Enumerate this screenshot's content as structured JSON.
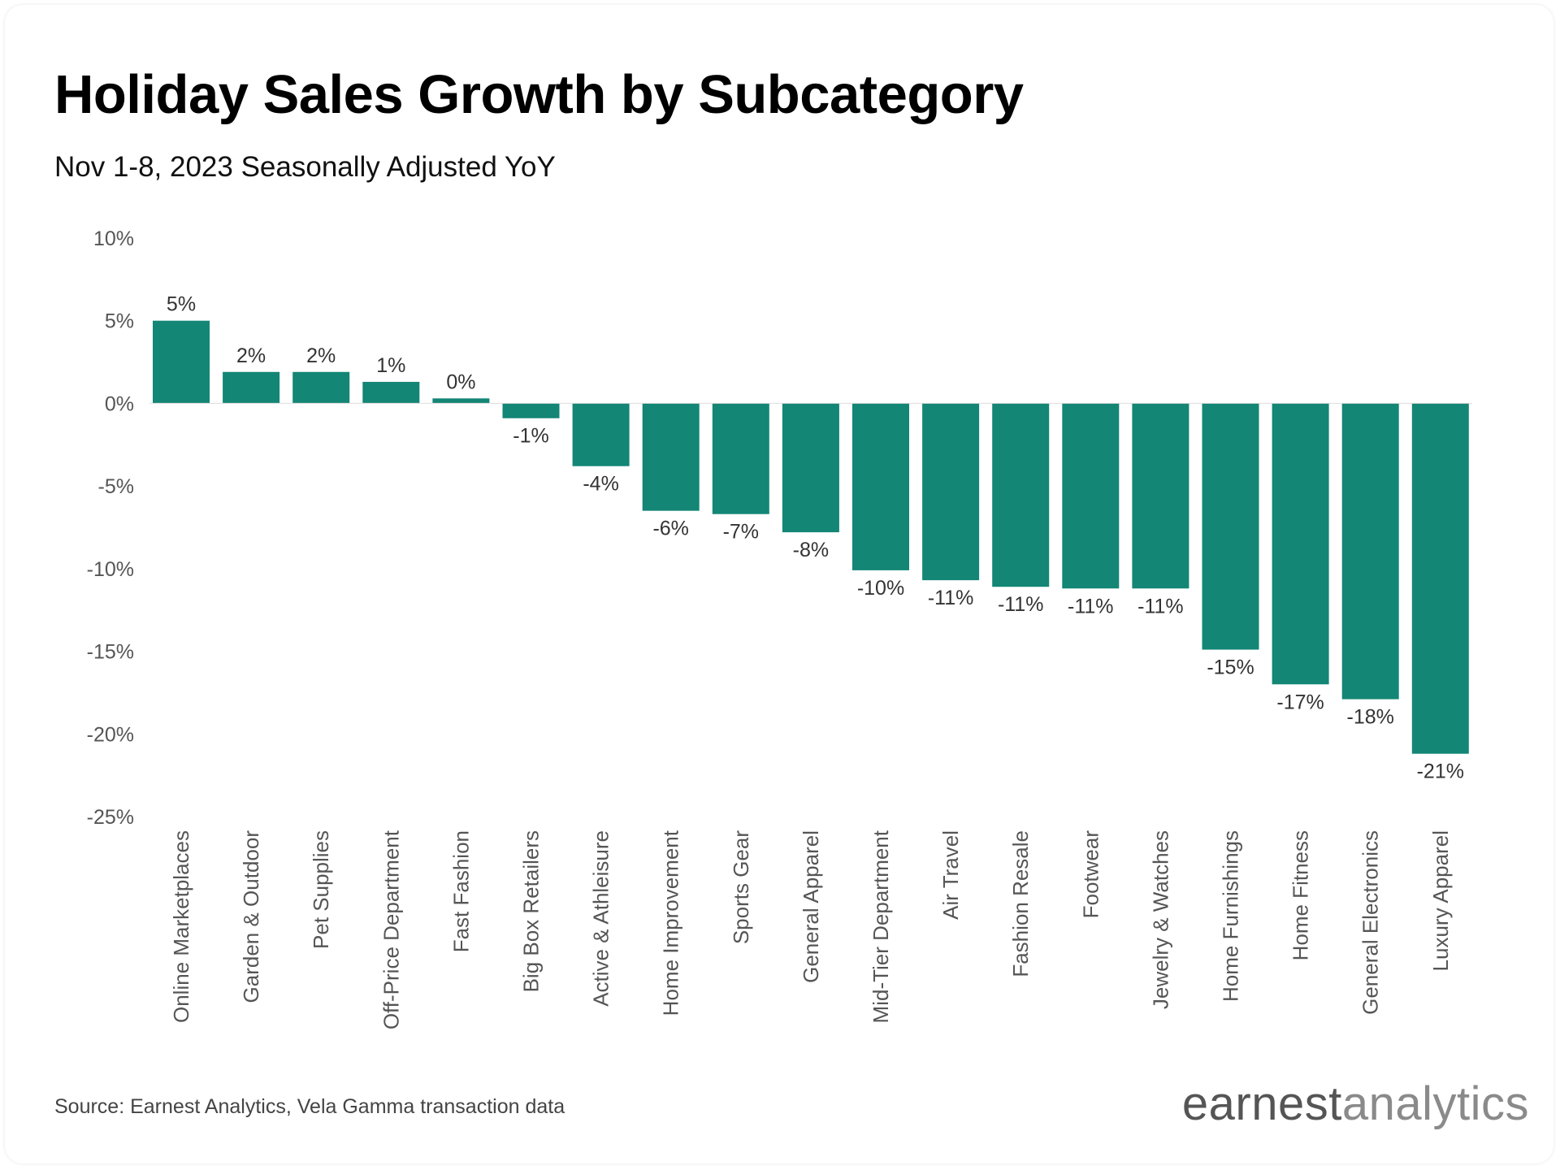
{
  "header": {
    "title": "Holiday Sales Growth by Subcategory",
    "subtitle": "Nov 1-8, 2023 Seasonally Adjusted YoY"
  },
  "footer": {
    "source": "Source: Earnest Analytics, Vela Gamma transaction data",
    "logo_part1": "earnest",
    "logo_part2": "analytics"
  },
  "colors": {
    "bar": "#138675",
    "tick_text": "#555555",
    "label_text": "#333333"
  },
  "chart_data": {
    "type": "bar",
    "title": "Holiday Sales Growth by Subcategory",
    "subtitle": "Nov 1-8, 2023 Seasonally Adjusted YoY",
    "xlabel": "",
    "ylabel": "",
    "ylim": [
      -25,
      10
    ],
    "yticks": [
      10,
      5,
      0,
      -5,
      -10,
      -15,
      -20,
      -25
    ],
    "ytick_labels": [
      "10%",
      "5%",
      "0%",
      "-5%",
      "-10%",
      "-15%",
      "-20%",
      "-25%"
    ],
    "grid": false,
    "legend": "none",
    "categories": [
      "Online Marketplaces",
      "Garden & Outdoor",
      "Pet Supplies",
      "Off-Price Department",
      "Fast Fashion",
      "Big Box Retailers",
      "Active & Athleisure",
      "Home Improvement",
      "Sports Gear",
      "General Apparel",
      "Mid-Tier Department",
      "Air Travel",
      "Fashion Resale",
      "Footwear",
      "Jewelry & Watches",
      "Home Furnishings",
      "Home Fitness",
      "General Electronics",
      "Luxury Apparel"
    ],
    "values": [
      5.0,
      1.9,
      1.9,
      1.3,
      0.3,
      -0.9,
      -3.8,
      -6.5,
      -6.7,
      -7.8,
      -10.1,
      -10.7,
      -11.1,
      -11.2,
      -11.2,
      -14.9,
      -17.0,
      -17.9,
      -21.2
    ],
    "data_labels": [
      "5%",
      "2%",
      "2%",
      "1%",
      "0%",
      "-1%",
      "-4%",
      "-6%",
      "-7%",
      "-8%",
      "-10%",
      "-11%",
      "-11%",
      "-11%",
      "-11%",
      "-15%",
      "-17%",
      "-18%",
      "-21%"
    ]
  }
}
